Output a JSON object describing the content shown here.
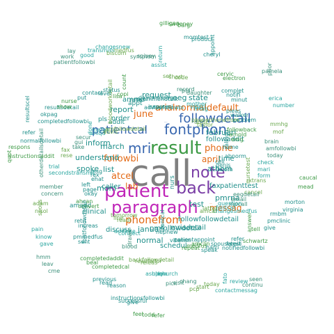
{
  "palette": {
    "gray": "#7f7f7f",
    "purple": "#7b3fa6",
    "magenta": "#c026b8",
    "green": "#3d9a45",
    "orange": "#e36a16",
    "blue": "#3a68b0",
    "teal": "#1f8f8a",
    "light": "#2aa6a0",
    "olive": "#6aa84f"
  },
  "words": [
    {
      "t": "call",
      "c": "gray"
    },
    {
      "t": "patient",
      "c": "magenta"
    },
    {
      "t": "paragraph",
      "c": "magenta"
    },
    {
      "t": "result",
      "c": "green"
    },
    {
      "t": "back",
      "c": "purple"
    },
    {
      "t": "note",
      "c": "purple"
    },
    {
      "t": "fontphon",
      "c": "blue"
    },
    {
      "t": "mri",
      "c": "blue"
    },
    {
      "t": "followdetail",
      "c": "blue"
    },
    {
      "t": "patientcal",
      "c": "blue"
    },
    {
      "t": "phonefrom",
      "c": "orange"
    },
    {
      "t": "arialnormaldefault",
      "c": "orange"
    },
    {
      "t": "june",
      "c": "orange"
    },
    {
      "t": "followbi",
      "c": "orange"
    },
    {
      "t": "atcel",
      "c": "orange"
    },
    {
      "t": "phone",
      "c": "orange"
    },
    {
      "t": "april",
      "c": "orange"
    },
    {
      "t": "messag",
      "c": "orange"
    },
    {
      "t": "lab",
      "c": "orange"
    },
    {
      "t": "fontphon",
      "c": "blue"
    },
    {
      "t": "request",
      "c": "teal"
    },
    {
      "t": "eeg",
      "c": "teal"
    },
    {
      "t": "state",
      "c": "teal"
    },
    {
      "t": "report",
      "c": "teal"
    },
    {
      "t": "order",
      "c": "teal"
    },
    {
      "t": "inform",
      "c": "teal"
    },
    {
      "t": "march",
      "c": "teal"
    },
    {
      "t": "understand",
      "c": "teal"
    },
    {
      "t": "spoke",
      "c": "teal"
    },
    {
      "t": "list",
      "c": "teal"
    },
    {
      "t": "mom",
      "c": "teal"
    },
    {
      "t": "caller",
      "c": "teal"
    },
    {
      "t": "januari",
      "c": "teal"
    },
    {
      "t": "normal",
      "c": "teal"
    },
    {
      "t": "februari",
      "c": "teal"
    },
    {
      "t": "followaddit",
      "c": "teal"
    },
    {
      "t": "time",
      "c": "teal"
    },
    {
      "t": "athom",
      "c": "teal"
    },
    {
      "t": "test",
      "c": "teal"
    },
    {
      "t": "pmrna",
      "c": "teal"
    },
    {
      "t": "patienttest",
      "c": "teal"
    },
    {
      "t": "pmfollowdetail",
      "c": "teal"
    },
    {
      "t": "mriadetail",
      "c": "teal"
    },
    {
      "t": "schedul",
      "c": "teal"
    },
    {
      "t": "discuss",
      "c": "teal"
    },
    {
      "t": "clinical",
      "c": "teal"
    },
    {
      "t": "followfollowdetail",
      "c": "teal"
    },
    {
      "t": "fax",
      "c": "teal"
    },
    {
      "t": "amrna",
      "c": "teal"
    },
    {
      "t": "appt",
      "c": "teal"
    },
    {
      "t": "addit",
      "c": "teal"
    },
    {
      "t": "pls",
      "c": "teal"
    },
    {
      "t": "messag",
      "c": "orange"
    },
    {
      "t": "nurs",
      "c": "teal"
    },
    {
      "t": "amadd",
      "c": "teal"
    }
  ],
  "small_words": [
    "incom",
    "changesmedfus",
    "repeat",
    "backfollowdetail",
    "pmmedfus",
    "otherdetailsdetail",
    "resultsdetail",
    "changesnew",
    "barg",
    "taylor",
    "abnorm",
    "mpcall",
    "speak",
    "ashley",
    "completedaddit",
    "adam",
    "resultscel",
    "lay",
    "appreci",
    "imag",
    "emg",
    "cancel",
    "notifiedfollowbi",
    "pick",
    "previous",
    "pain",
    "respons",
    "bloodworkdetail",
    "daysmessag",
    "daughter",
    "problem",
    "form",
    "schwartz",
    "pcp",
    "instructionsfollowbi",
    "hmm",
    "msg",
    "mafax",
    "count",
    "code",
    "minut",
    "today",
    "give",
    "contactmessag",
    "feel",
    "tomorrow",
    "left",
    "secur",
    "status",
    "return",
    "electron",
    "mof",
    "virginia",
    "continu",
    "nephew",
    "amtime",
    "ahcan",
    "fax",
    "contact",
    "spivey",
    "appoint",
    "number",
    "mead",
    "amcal",
    "vitamin",
    "blood",
    "retri",
    "trial",
    "nurse",
    "medfus",
    "product",
    "prior",
    "denis",
    "fontcal",
    "medfus",
    "readfailur",
    "sent",
    "member",
    "okpag",
    "transmiss",
    "sweeney",
    "ddisc",
    "raleigh",
    "email",
    "harri",
    "upohurch",
    "beal",
    "nicol",
    "refer",
    "work",
    "issu",
    "valeri",
    "arnold",
    "nursetest",
    "famili",
    "visit",
    "read",
    "kinow",
    "instructionsaddit",
    "amfollowdetail",
    "recommendtalk",
    "pts",
    "walker",
    "mari",
    "answer",
    "start",
    "successful",
    "leav",
    "rex",
    "uniqu",
    "copi",
    "chart",
    "notifi",
    "amfollowbi",
    "pmclinic",
    "fato",
    "todd",
    "line",
    "page",
    "gui",
    "level",
    "assist",
    "cervic",
    "mmhg",
    "morton",
    "seen",
    "fontcal",
    "connect",
    "convert",
    "rese",
    "put",
    "symptom",
    "cheryl",
    "erica",
    "caucal",
    "latter",
    "patientappoint",
    "drawn",
    "increas",
    "secondstransmit",
    "show",
    "biscom",
    "momtest",
    "pamela",
    "cell",
    "question",
    "amclin",
    "releas",
    "fontfollowdetail",
    "concern",
    "completedfollowbi",
    "good",
    "gilligan",
    "phonephonefrom",
    "home",
    "eegdetail",
    "spousetest",
    "low",
    "completedcal",
    "spous",
    "normalfollowbi",
    "patientfollowbi",
    "advisefollowbi",
    "mother",
    "followback",
    "rxtrans",
    "refer",
    "chang",
    "reason",
    "gave",
    "quot",
    "advis",
    "rate",
    "record",
    "pleas",
    "check",
    "tell",
    "today",
    "give",
    "cme",
    "ehat",
    "done",
    "lisa",
    "set",
    "complet",
    "brain",
    "rmbm",
    "review",
    "refer",
    "readi",
    "okay",
    "take"
  ]
}
